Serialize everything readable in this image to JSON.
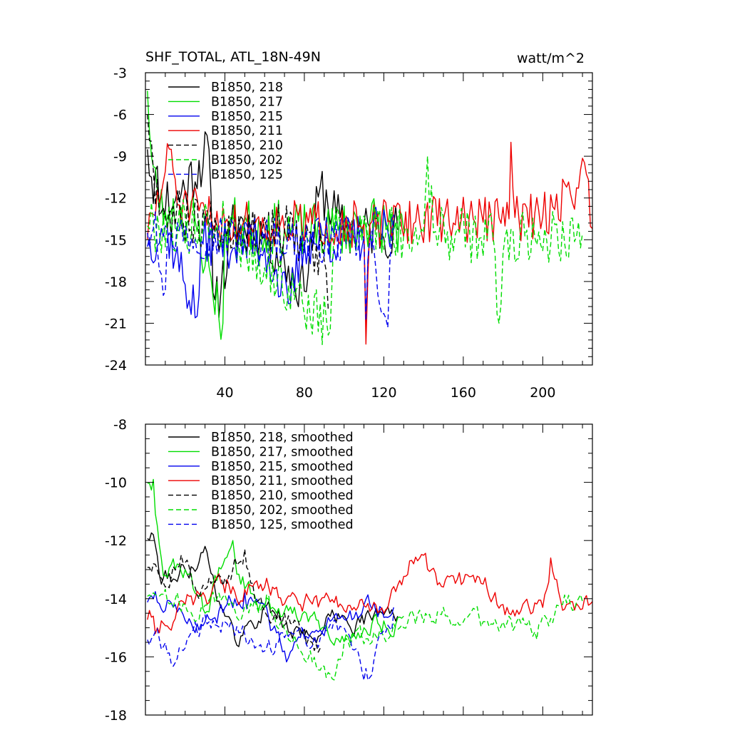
{
  "title_left": "SHF_TOTAL, ATL_18N-49N",
  "title_right": "watt/m^2",
  "chart_data": [
    {
      "type": "line",
      "panel": "top",
      "xlim": [
        0,
        225
      ],
      "ylim": [
        -24,
        -3
      ],
      "xticks": [
        40,
        80,
        120,
        160,
        200
      ],
      "xtick_labels": [
        "40",
        "80",
        "120",
        "160",
        "200"
      ],
      "yticks": [
        -24,
        -21,
        -18,
        -15,
        -12,
        -9,
        -6,
        -3
      ],
      "ytick_labels": [
        "-24",
        "-21",
        "-18",
        "-15",
        "-12",
        "-9",
        "-6",
        "-3"
      ],
      "legend_position": "top-left",
      "series": [
        {
          "name": "B1850, 218",
          "color": "#000000",
          "dash": false,
          "length": 127,
          "mean": -14.3,
          "amp": 2.0,
          "seed": 11,
          "anchors": [
            [
              1,
              -8.5
            ],
            [
              3,
              -10.5
            ],
            [
              8,
              -11.5
            ],
            [
              14,
              -12.5
            ],
            [
              32,
              -8.5
            ],
            [
              34,
              -18.8
            ],
            [
              38,
              -18.7
            ],
            [
              45,
              -13.5
            ],
            [
              60,
              -14.6
            ],
            [
              80,
              -18.7
            ],
            [
              88,
              -11.2
            ],
            [
              100,
              -14.4
            ],
            [
              127,
              -14.3
            ]
          ]
        },
        {
          "name": "B1850, 217",
          "color": "#00dd00",
          "dash": false,
          "length": 130,
          "mean": -14.0,
          "amp": 2.0,
          "seed": 23,
          "anchors": [
            [
              1,
              -4.3
            ],
            [
              3,
              -9.0
            ],
            [
              6,
              -11.5
            ],
            [
              10,
              -13.0
            ],
            [
              25,
              -13.6
            ],
            [
              39,
              -21.0
            ],
            [
              40,
              -13.8
            ],
            [
              70,
              -14.2
            ],
            [
              95,
              -14.5
            ],
            [
              110,
              -13.6
            ],
            [
              130,
              -14.3
            ]
          ]
        },
        {
          "name": "B1850, 215",
          "color": "#0000ee",
          "dash": false,
          "length": 125,
          "mean": -14.7,
          "amp": 1.8,
          "seed": 37,
          "anchors": [
            [
              1,
              -15.5
            ],
            [
              10,
              -14.0
            ],
            [
              26,
              -20.5
            ],
            [
              28,
              -15.0
            ],
            [
              60,
              -15.6
            ],
            [
              72,
              -19.6
            ],
            [
              80,
              -15.2
            ],
            [
              110,
              -14.8
            ],
            [
              111,
              -21.0
            ],
            [
              113,
              -14.5
            ],
            [
              125,
              -14.3
            ]
          ]
        },
        {
          "name": "B1850, 211",
          "color": "#ee0000",
          "dash": false,
          "length": 225,
          "mean": -13.9,
          "amp": 1.7,
          "seed": 51,
          "anchors": [
            [
              1,
              -15.0
            ],
            [
              13,
              -8.5
            ],
            [
              16,
              -12.5
            ],
            [
              40,
              -13.8
            ],
            [
              110,
              -13.9
            ],
            [
              111,
              -22.5
            ],
            [
              113,
              -13.9
            ],
            [
              150,
              -13.5
            ],
            [
              183,
              -13.5
            ],
            [
              184,
              -8.0
            ],
            [
              186,
              -13.4
            ],
            [
              200,
              -13.4
            ],
            [
              222,
              -10.3
            ],
            [
              225,
              -14.2
            ]
          ]
        },
        {
          "name": "B1850, 210",
          "color": "#000000",
          "dash": true,
          "length": 92,
          "mean": -14.2,
          "amp": 1.9,
          "seed": 67,
          "anchors": [
            [
              1,
              -6.0
            ],
            [
              4,
              -10.0
            ],
            [
              8,
              -13.0
            ],
            [
              40,
              -14.0
            ],
            [
              70,
              -14.3
            ],
            [
              90,
              -16.5
            ],
            [
              92,
              -20.0
            ]
          ]
        },
        {
          "name": "B1850, 202",
          "color": "#00dd00",
          "dash": true,
          "length": 220,
          "mean": -14.4,
          "amp": 2.0,
          "seed": 79,
          "anchors": [
            [
              1,
              -14.0
            ],
            [
              40,
              -14.0
            ],
            [
              93,
              -21.5
            ],
            [
              95,
              -14.0
            ],
            [
              140,
              -14.5
            ],
            [
              142,
              -9.0
            ],
            [
              145,
              -14.5
            ],
            [
              175,
              -14.8
            ],
            [
              178,
              -21.0
            ],
            [
              181,
              -14.8
            ],
            [
              220,
              -14.5
            ]
          ]
        },
        {
          "name": "B1850, 125",
          "color": "#0000ee",
          "dash": true,
          "length": 125,
          "mean": -14.8,
          "amp": 1.7,
          "seed": 97,
          "anchors": [
            [
              1,
              -14.5
            ],
            [
              5,
              -13.0
            ],
            [
              9,
              -19.0
            ],
            [
              12,
              -14.5
            ],
            [
              60,
              -15.0
            ],
            [
              110,
              -15.0
            ],
            [
              111,
              -20.8
            ],
            [
              113,
              -15.0
            ],
            [
              122,
              -21.3
            ],
            [
              124,
              -14.8
            ],
            [
              125,
              -13.2
            ]
          ]
        }
      ]
    },
    {
      "type": "line",
      "panel": "bottom",
      "xlim": [
        0,
        225
      ],
      "ylim": [
        -18,
        -8
      ],
      "xticks": [
        40,
        80,
        120,
        160,
        200
      ],
      "yticks": [
        -18,
        -16,
        -14,
        -12,
        -10,
        -8
      ],
      "ytick_labels": [
        "-18",
        "-16",
        "-14",
        "-12",
        "-10",
        "-8"
      ],
      "legend_position": "top-left",
      "series": [
        {
          "name": "B1850, 218, smoothed",
          "color": "#000000",
          "dash": false,
          "length": 127,
          "mean": -14.5,
          "amp": 0.45,
          "seed": 111,
          "anchors": [
            [
              4,
              -11.8
            ],
            [
              8,
              -13.5
            ],
            [
              20,
              -13.0
            ],
            [
              30,
              -12.2
            ],
            [
              40,
              -14.6
            ],
            [
              45,
              -15.4
            ],
            [
              60,
              -14.3
            ],
            [
              80,
              -15.3
            ],
            [
              100,
              -14.6
            ],
            [
              127,
              -14.6
            ]
          ]
        },
        {
          "name": "B1850, 217, smoothed",
          "color": "#00dd00",
          "dash": false,
          "length": 130,
          "mean": -14.4,
          "amp": 0.45,
          "seed": 123,
          "anchors": [
            [
              4,
              -9.9
            ],
            [
              6,
              -11.5
            ],
            [
              10,
              -13.2
            ],
            [
              20,
              -13.0
            ],
            [
              30,
              -14.5
            ],
            [
              44,
              -12.0
            ],
            [
              48,
              -13.5
            ],
            [
              60,
              -14.3
            ],
            [
              75,
              -14.3
            ],
            [
              95,
              -15.6
            ],
            [
              110,
              -15.0
            ],
            [
              130,
              -14.6
            ]
          ]
        },
        {
          "name": "B1850, 215, smoothed",
          "color": "#0000ee",
          "dash": false,
          "length": 125,
          "mean": -14.8,
          "amp": 0.45,
          "seed": 137,
          "anchors": [
            [
              4,
              -14.0
            ],
            [
              15,
              -14.2
            ],
            [
              30,
              -14.8
            ],
            [
              50,
              -13.8
            ],
            [
              70,
              -15.8
            ],
            [
              80,
              -15.3
            ],
            [
              100,
              -14.7
            ],
            [
              125,
              -14.3
            ]
          ]
        },
        {
          "name": "B1850, 211, smoothed",
          "color": "#ee0000",
          "dash": false,
          "length": 225,
          "mean": -13.9,
          "amp": 0.45,
          "seed": 151,
          "anchors": [
            [
              4,
              -14.6
            ],
            [
              6,
              -15.0
            ],
            [
              20,
              -14.2
            ],
            [
              40,
              -13.8
            ],
            [
              60,
              -13.6
            ],
            [
              80,
              -14.1
            ],
            [
              100,
              -14.4
            ],
            [
              120,
              -14.5
            ],
            [
              133,
              -12.7
            ],
            [
              150,
              -13.6
            ],
            [
              170,
              -13.5
            ],
            [
              183,
              -14.5
            ],
            [
              200,
              -14.3
            ],
            [
              204,
              -12.6
            ],
            [
              210,
              -14.4
            ],
            [
              225,
              -14.1
            ]
          ]
        },
        {
          "name": "B1850, 210, smoothed",
          "color": "#000000",
          "dash": true,
          "length": 88,
          "mean": -14.2,
          "amp": 0.45,
          "seed": 167,
          "anchors": [
            [
              4,
              -12.8
            ],
            [
              10,
              -13.6
            ],
            [
              18,
              -12.5
            ],
            [
              25,
              -13.6
            ],
            [
              40,
              -13.3
            ],
            [
              50,
              -12.3
            ],
            [
              55,
              -14.0
            ],
            [
              70,
              -14.5
            ],
            [
              80,
              -15.0
            ],
            [
              88,
              -15.7
            ]
          ]
        },
        {
          "name": "B1850, 202, smoothed",
          "color": "#00dd00",
          "dash": true,
          "length": 220,
          "mean": -14.5,
          "amp": 0.45,
          "seed": 179,
          "anchors": [
            [
              4,
              -13.8
            ],
            [
              20,
              -14.2
            ],
            [
              60,
              -14.3
            ],
            [
              93,
              -16.6
            ],
            [
              100,
              -15.5
            ],
            [
              130,
              -15.0
            ],
            [
              150,
              -14.3
            ],
            [
              160,
              -14.8
            ],
            [
              180,
              -14.8
            ],
            [
              197,
              -15.4
            ],
            [
              210,
              -14.2
            ],
            [
              220,
              -14.1
            ]
          ]
        },
        {
          "name": "B1850, 125, smoothed",
          "color": "#0000ee",
          "dash": true,
          "length": 125,
          "mean": -14.9,
          "amp": 0.45,
          "seed": 197,
          "anchors": [
            [
              4,
              -15.3
            ],
            [
              15,
              -16.2
            ],
            [
              25,
              -14.8
            ],
            [
              40,
              -14.8
            ],
            [
              60,
              -15.8
            ],
            [
              75,
              -15.2
            ],
            [
              100,
              -15.0
            ],
            [
              111,
              -16.4
            ],
            [
              118,
              -15.2
            ],
            [
              125,
              -14.5
            ]
          ]
        }
      ]
    }
  ]
}
